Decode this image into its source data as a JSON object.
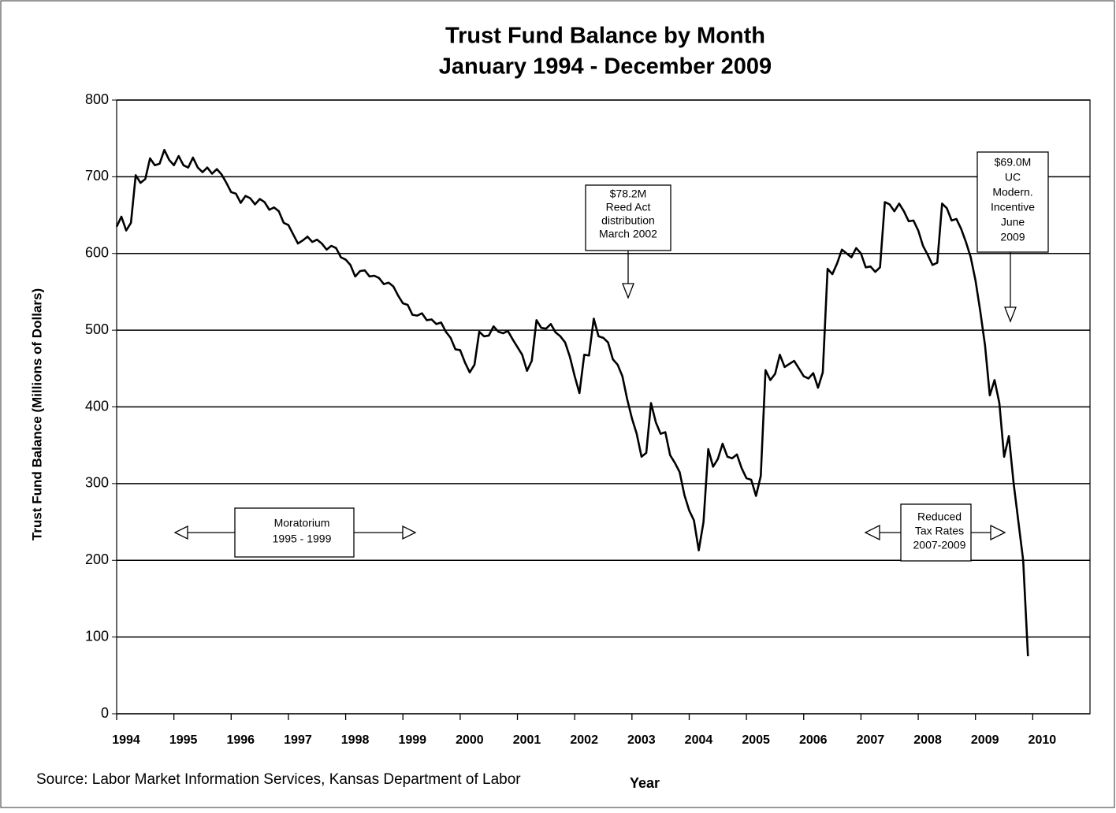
{
  "chart_data": {
    "type": "line",
    "title": "Trust Fund Balance by Month",
    "subtitle": "January 1994 - December 2009",
    "y_label": "Trust Fund Balance (Millions of Dollars)",
    "x_label": "Year",
    "source": "Source:  Labor Market Information Services, Kansas Department of Labor",
    "xlim": [
      1994,
      2011
    ],
    "xticks": [
      1994,
      1995,
      1996,
      1997,
      1998,
      1999,
      2000,
      2001,
      2002,
      2003,
      2004,
      2005,
      2006,
      2007,
      2008,
      2009,
      2010
    ],
    "ylim": [
      0,
      800
    ],
    "yticks": [
      0,
      100,
      200,
      300,
      400,
      500,
      600,
      700,
      800
    ],
    "grid": true,
    "color": "#000000",
    "x": [
      1994.0,
      1994.083,
      1994.167,
      1994.25,
      1994.333,
      1994.417,
      1994.5,
      1994.583,
      1994.667,
      1994.75,
      1994.833,
      1994.917,
      1995.0,
      1995.083,
      1995.167,
      1995.25,
      1995.333,
      1995.417,
      1995.5,
      1995.583,
      1995.667,
      1995.75,
      1995.833,
      1995.917,
      1996.0,
      1996.083,
      1996.167,
      1996.25,
      1996.333,
      1996.417,
      1996.5,
      1996.583,
      1996.667,
      1996.75,
      1996.833,
      1996.917,
      1997.0,
      1997.083,
      1997.167,
      1997.25,
      1997.333,
      1997.417,
      1997.5,
      1997.583,
      1997.667,
      1997.75,
      1997.833,
      1997.917,
      1998.0,
      1998.083,
      1998.167,
      1998.25,
      1998.333,
      1998.417,
      1998.5,
      1998.583,
      1998.667,
      1998.75,
      1998.833,
      1998.917,
      1999.0,
      1999.083,
      1999.167,
      1999.25,
      1999.333,
      1999.417,
      1999.5,
      1999.583,
      1999.667,
      1999.75,
      1999.833,
      1999.917,
      2000.0,
      2000.083,
      2000.167,
      2000.25,
      2000.333,
      2000.417,
      2000.5,
      2000.583,
      2000.667,
      2000.75,
      2000.833,
      2000.917,
      2001.0,
      2001.083,
      2001.167,
      2001.25,
      2001.333,
      2001.417,
      2001.5,
      2001.583,
      2001.667,
      2001.75,
      2001.833,
      2001.917,
      2002.0,
      2002.083,
      2002.167,
      2002.25,
      2002.333,
      2002.417,
      2002.5,
      2002.583,
      2002.667,
      2002.75,
      2002.833,
      2002.917,
      2003.0,
      2003.083,
      2003.167,
      2003.25,
      2003.333,
      2003.417,
      2003.5,
      2003.583,
      2003.667,
      2003.75,
      2003.833,
      2003.917,
      2004.0,
      2004.083,
      2004.167,
      2004.25,
      2004.333,
      2004.417,
      2004.5,
      2004.583,
      2004.667,
      2004.75,
      2004.833,
      2004.917,
      2005.0,
      2005.083,
      2005.167,
      2005.25,
      2005.333,
      2005.417,
      2005.5,
      2005.583,
      2005.667,
      2005.75,
      2005.833,
      2005.917,
      2006.0,
      2006.083,
      2006.167,
      2006.25,
      2006.333,
      2006.417,
      2006.5,
      2006.583,
      2006.667,
      2006.75,
      2006.833,
      2006.917,
      2007.0,
      2007.083,
      2007.167,
      2007.25,
      2007.333,
      2007.417,
      2007.5,
      2007.583,
      2007.667,
      2007.75,
      2007.833,
      2007.917,
      2008.0,
      2008.083,
      2008.167,
      2008.25,
      2008.333,
      2008.417,
      2008.5,
      2008.583,
      2008.667,
      2008.75,
      2008.833,
      2008.917,
      2009.0,
      2009.083,
      2009.167,
      2009.25,
      2009.333,
      2009.417,
      2009.5,
      2009.583,
      2009.667,
      2009.75,
      2009.833,
      2009.917
    ],
    "values": [
      635,
      648,
      630,
      640,
      702,
      692,
      697,
      724,
      715,
      717,
      735,
      722,
      715,
      727,
      715,
      712,
      725,
      712,
      706,
      712,
      704,
      710,
      703,
      692,
      680,
      678,
      666,
      675,
      672,
      664,
      671,
      667,
      657,
      660,
      655,
      640,
      637,
      625,
      613,
      617,
      622,
      615,
      618,
      613,
      605,
      610,
      607,
      595,
      592,
      585,
      570,
      577,
      578,
      570,
      571,
      568,
      560,
      562,
      557,
      545,
      535,
      533,
      520,
      519,
      522,
      513,
      514,
      508,
      510,
      498,
      490,
      475,
      474,
      458,
      445,
      455,
      498,
      492,
      493,
      505,
      498,
      496,
      499,
      488,
      478,
      468,
      447,
      460,
      513,
      503,
      502,
      508,
      497,
      492,
      484,
      465,
      440,
      418,
      468,
      467,
      515,
      492,
      490,
      484,
      462,
      455,
      440,
      410,
      385,
      365,
      335,
      340,
      405,
      380,
      365,
      367,
      337,
      327,
      315,
      285,
      265,
      252,
      213,
      250,
      345,
      322,
      332,
      352,
      335,
      333,
      338,
      320,
      307,
      305,
      284,
      310,
      448,
      435,
      443,
      468,
      452,
      456,
      460,
      450,
      440,
      437,
      444,
      425,
      445,
      580,
      573,
      587,
      605,
      600,
      595,
      607,
      600,
      582,
      583,
      576,
      582,
      667,
      664,
      655,
      665,
      655,
      642,
      643,
      630,
      610,
      598,
      585,
      588,
      665,
      659,
      643,
      645,
      632,
      615,
      595,
      565,
      525,
      480,
      415,
      435,
      405,
      335,
      362,
      300,
      250,
      200,
      75
    ],
    "annotations": [
      [
        "$78.2M",
        "Reed Act",
        "distribution",
        "March 2002"
      ],
      [
        "$69.0M",
        "UC",
        "Modern.",
        "Incentive",
        "June",
        "2009"
      ],
      [
        "Moratorium",
        "1995 - 1999"
      ],
      [
        "Reduced",
        "Tax Rates",
        "2007-2009"
      ]
    ]
  }
}
